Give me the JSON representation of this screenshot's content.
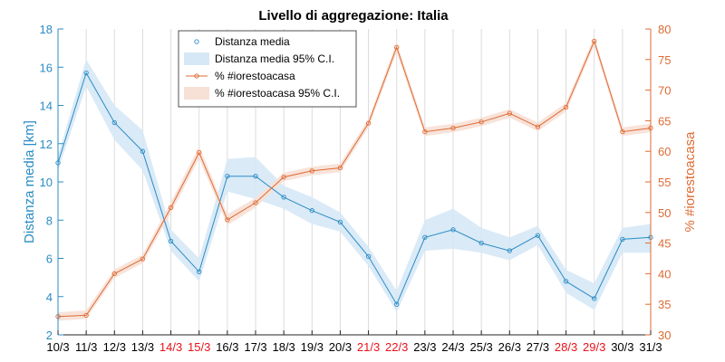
{
  "chart_data": {
    "type": "line",
    "title": "Livello di aggregazione: Italia",
    "categories": [
      "10/3",
      "11/3",
      "12/3",
      "13/3",
      "14/3",
      "15/3",
      "16/3",
      "17/3",
      "18/3",
      "19/3",
      "20/3",
      "21/3",
      "22/3",
      "23/3",
      "24/3",
      "25/3",
      "26/3",
      "27/3",
      "28/3",
      "29/3",
      "30/3",
      "31/3"
    ],
    "highlighted_categories": [
      "14/3",
      "15/3",
      "21/3",
      "22/3",
      "28/3",
      "29/3"
    ],
    "highlight_color": "#e8121a",
    "ylabel_left": "Distanza media [km]",
    "ylabel_right": "% #iorestoacasa",
    "ylim_left": [
      2,
      18
    ],
    "ylim_right": [
      30,
      80
    ],
    "yticks_left": [
      "2",
      "4",
      "6",
      "8",
      "10",
      "12",
      "14",
      "16",
      "18"
    ],
    "yticks_right": [
      "30",
      "35",
      "40",
      "45",
      "50",
      "55",
      "60",
      "65",
      "70",
      "75",
      "80"
    ],
    "grid": "vertical",
    "legend_position": "top-center",
    "colors": {
      "distance_line": "#2a8cc4",
      "distance_band": "#d6e8f6",
      "percent_line": "#de6b33",
      "percent_band": "#f7e0d6",
      "grid": "#dcdcdc",
      "axis_text": "#000000"
    },
    "legend": [
      {
        "label": "Distanza media",
        "kind": "line",
        "series": "distance"
      },
      {
        "label": "Distanza media 95% C.I.",
        "kind": "band",
        "series": "distance"
      },
      {
        "label": "% #iorestoacasa",
        "kind": "line",
        "series": "percent"
      },
      {
        "label": "% #iorestoacasa 95% C.I.",
        "kind": "band",
        "series": "percent"
      }
    ],
    "series": [
      {
        "name": "Distanza media",
        "axis": "left",
        "values": [
          11.0,
          15.7,
          13.1,
          11.6,
          6.9,
          5.3,
          10.3,
          10.3,
          9.2,
          8.5,
          7.9,
          6.1,
          3.6,
          7.1,
          7.5,
          6.8,
          6.4,
          7.2,
          4.8,
          3.9,
          7.0,
          7.1
        ],
        "ci_lower": [
          10.6,
          15.0,
          12.2,
          10.6,
          6.4,
          4.8,
          9.5,
          9.1,
          8.6,
          7.8,
          7.4,
          5.6,
          3.2,
          6.4,
          6.5,
          6.3,
          5.9,
          6.7,
          4.2,
          3.3,
          6.3,
          6.3
        ],
        "ci_upper": [
          11.4,
          16.4,
          14.0,
          12.7,
          7.5,
          6.0,
          11.2,
          11.3,
          9.8,
          9.2,
          8.4,
          6.6,
          4.3,
          8.0,
          8.6,
          7.6,
          7.1,
          7.7,
          5.4,
          4.7,
          7.6,
          7.8
        ]
      },
      {
        "name": "% #iorestoacasa",
        "axis": "right",
        "values": [
          33.0,
          33.2,
          40.0,
          42.4,
          50.8,
          59.8,
          48.8,
          51.6,
          55.8,
          56.8,
          57.3,
          64.6,
          77.0,
          63.2,
          63.8,
          64.8,
          66.2,
          64.0,
          67.2,
          78.0,
          63.2,
          63.8
        ],
        "ci_lower": [
          32.3,
          32.6,
          39.3,
          41.7,
          49.9,
          58.8,
          47.9,
          50.8,
          55.1,
          56.1,
          56.6,
          63.9,
          76.2,
          62.5,
          63.1,
          64.1,
          65.5,
          63.3,
          66.5,
          77.3,
          62.5,
          63.1
        ],
        "ci_upper": [
          33.7,
          34.0,
          40.7,
          43.1,
          51.7,
          60.8,
          49.7,
          52.4,
          56.5,
          57.5,
          58.0,
          65.3,
          77.8,
          63.9,
          64.5,
          65.5,
          66.9,
          64.7,
          67.9,
          78.7,
          63.9,
          64.5
        ]
      }
    ]
  }
}
